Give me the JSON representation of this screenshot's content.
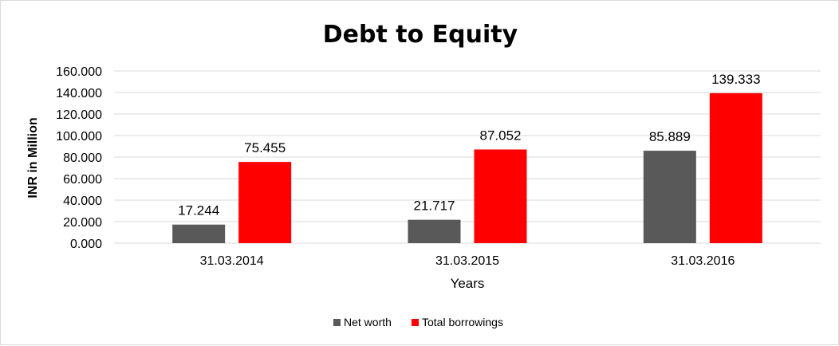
{
  "chart_data": {
    "type": "bar",
    "title": "Debt to Equity",
    "xlabel": "Years",
    "ylabel": "INR in Million",
    "categories": [
      "31.03.2014",
      "31.03.2015",
      "31.03.2016"
    ],
    "series": [
      {
        "name": "Net worth",
        "values": [
          17.244,
          21.717,
          85.889
        ],
        "value_labels": [
          "17.244",
          "21.717",
          "85.889"
        ],
        "color": "#595959"
      },
      {
        "name": "Total borrowings",
        "values": [
          75.455,
          87.052,
          139.333
        ],
        "value_labels": [
          "75.455",
          "87.052",
          "139.333"
        ],
        "color": "#ff0000"
      }
    ],
    "ylim": [
      0,
      160
    ],
    "yticks": [
      0,
      20,
      40,
      60,
      80,
      100,
      120,
      140,
      160
    ],
    "ytick_labels": [
      "0.000",
      "20.000",
      "40.000",
      "60.000",
      "80.000",
      "100.000",
      "120.000",
      "140.000",
      "160.000"
    ],
    "grid": true,
    "legend_position": "bottom"
  }
}
